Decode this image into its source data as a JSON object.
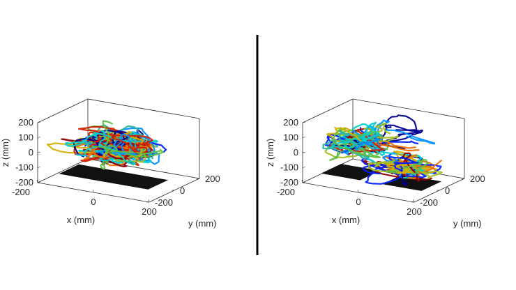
{
  "chart_data": [
    {
      "type": "3d-line",
      "title": "",
      "xlabel": "x (mm)",
      "ylabel": "y (mm)",
      "zlabel": "z (mm)",
      "xlim": [
        -200,
        200
      ],
      "ylim": [
        -200,
        200
      ],
      "zlim": [
        -200,
        200
      ],
      "xticks": [
        "-200",
        "0",
        "200"
      ],
      "yticks": [
        "200",
        "0",
        "-200"
      ],
      "zticks": [
        "200",
        "100",
        "0",
        "-100",
        "-200"
      ],
      "grid": false,
      "plates": [
        {
          "label": "",
          "x": [
            -160,
            160
          ],
          "y": [
            -120,
            40
          ],
          "z": -160
        }
      ],
      "trajectories": {
        "count": "many",
        "cluster_center": [
          0,
          0,
          30
        ],
        "cluster_spread": [
          130,
          110,
          90
        ],
        "colormap": "jet"
      }
    },
    {
      "type": "3d-line",
      "title": "",
      "xlabel": "x (mm)",
      "ylabel": "y (mm)",
      "zlabel": "z (mm)",
      "xlim": [
        -200,
        200
      ],
      "ylim": [
        -200,
        200
      ],
      "zlim": [
        -200,
        200
      ],
      "xticks": [
        "-200",
        "0",
        "200"
      ],
      "yticks": [
        "200",
        "0",
        "-200"
      ],
      "zticks": [
        "200",
        "100",
        "0",
        "-100",
        "-200"
      ],
      "grid": false,
      "plates": [
        {
          "label": "",
          "x": [
            -170,
            -30
          ],
          "y": [
            -120,
            40
          ],
          "z": -160
        },
        {
          "label": "",
          "x": [
            50,
            190
          ],
          "y": [
            -120,
            40
          ],
          "z": -160
        }
      ],
      "trajectories": {
        "count": "two clusters with bridging paths",
        "clusters": [
          {
            "center": [
              -110,
              0,
              10
            ]
          },
          {
            "center": [
              110,
              -40,
              -40
            ]
          }
        ],
        "colormap": "jet"
      }
    }
  ],
  "colors": {
    "axes": "#262626",
    "plate": "#111111",
    "divider": "#000000",
    "jet": [
      "#00008f",
      "#0020ff",
      "#0090ff",
      "#00cfd0",
      "#2fb4a0",
      "#5fbf40",
      "#a0c020",
      "#d4b000",
      "#f07000",
      "#d02000",
      "#8f0000"
    ]
  }
}
